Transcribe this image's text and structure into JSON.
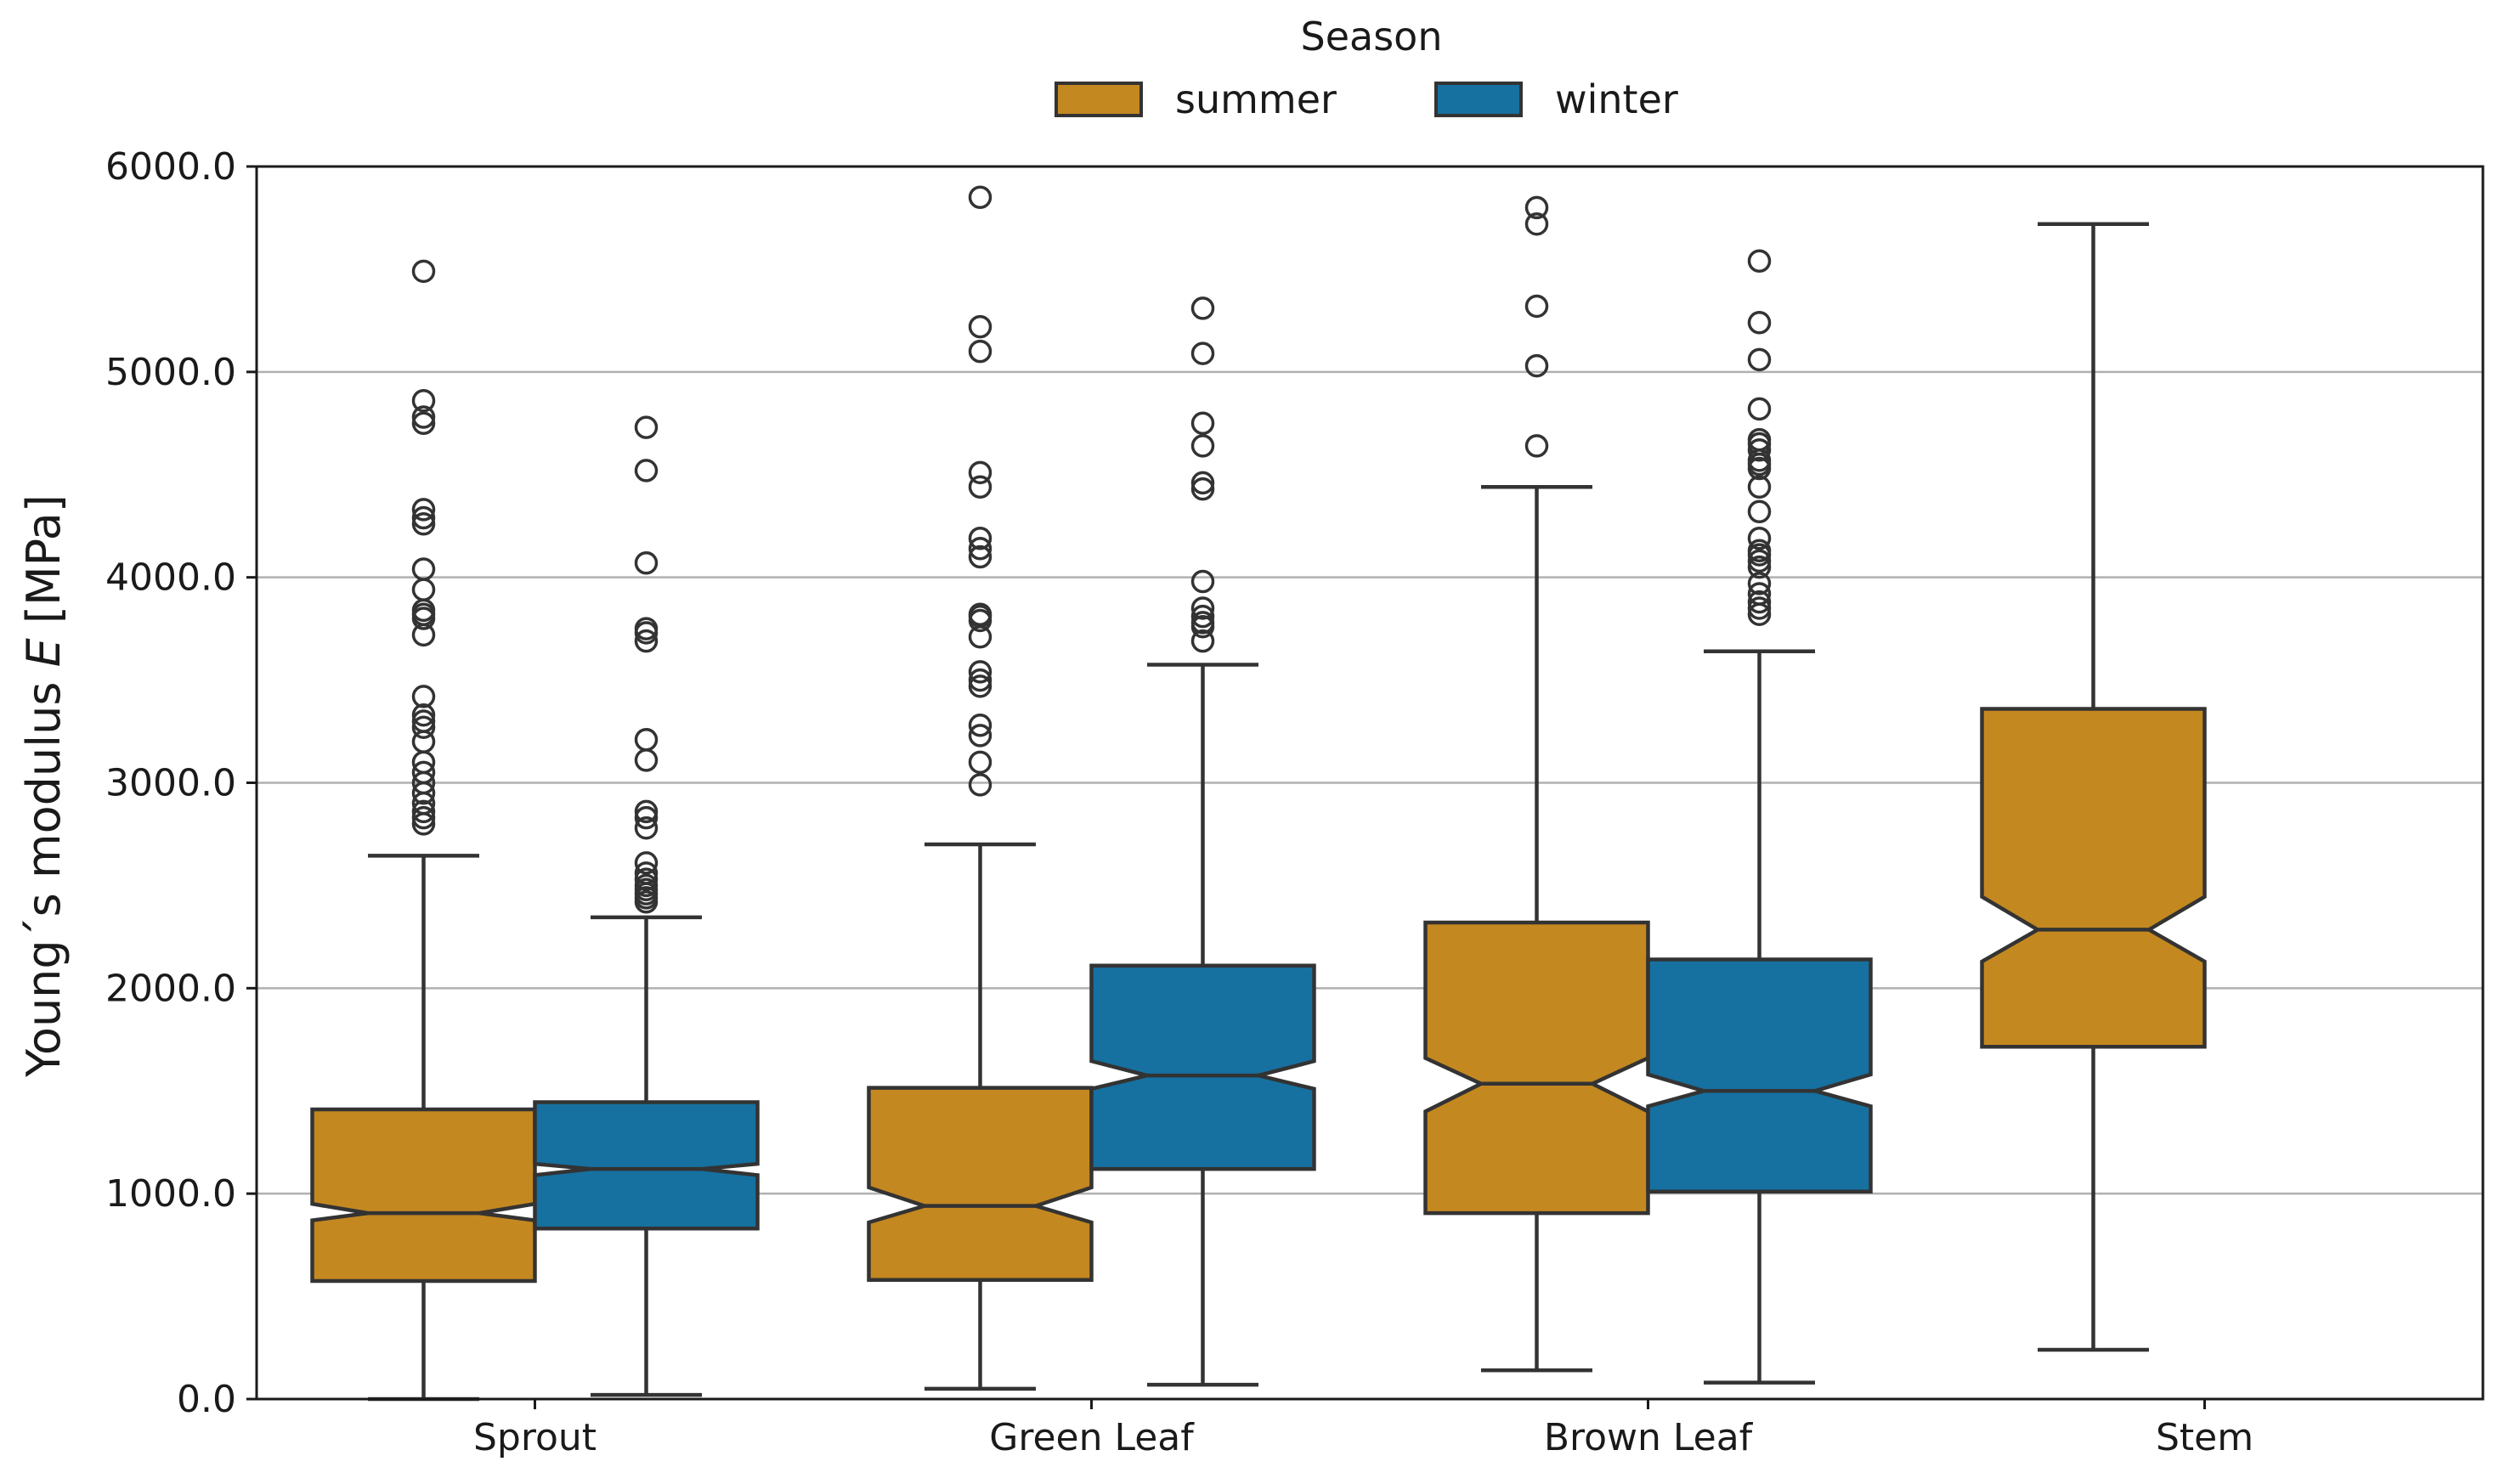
{
  "chart_data": {
    "type": "boxplot",
    "notched": true,
    "categories": [
      "Sprout",
      "Green Leaf",
      "Brown Leaf",
      "Stem"
    ],
    "ylabel_prefix": "Young´s modulus ",
    "ylabel_symbol": "E",
    "ylabel_suffix": " [MPa]",
    "ylim": [
      0,
      6000
    ],
    "yticks": [
      0,
      1000,
      2000,
      3000,
      4000,
      5000,
      6000
    ],
    "ytick_labels": [
      "0.0",
      "1000.0",
      "2000.0",
      "3000.0",
      "4000.0",
      "5000.0",
      "6000.0"
    ],
    "grid": "y-major",
    "legend": {
      "title": "Season",
      "placement": "top-center",
      "entries": [
        {
          "name": "summer",
          "color": "#c48820"
        },
        {
          "name": "winter",
          "color": "#1670a0"
        }
      ]
    },
    "series": [
      {
        "name": "summer",
        "color": "#c48820",
        "boxes": [
          {
            "category": "Sprout",
            "whisker_low": 0,
            "q1": 575,
            "notch_low": 870,
            "median": 905,
            "notch_high": 950,
            "q3": 1410,
            "whisker_high": 2645,
            "outliers": [
              2800,
              2830,
              2860,
              2900,
              2950,
              3000,
              3050,
              3100,
              3200,
              3270,
              3300,
              3330,
              3420,
              3720,
              3800,
              3820,
              3840,
              3940,
              4040,
              4260,
              4290,
              4330,
              4750,
              4780,
              4860,
              5490
            ]
          },
          {
            "category": "Green Leaf",
            "whisker_low": 50,
            "q1": 580,
            "notch_low": 860,
            "median": 940,
            "notch_high": 1030,
            "q3": 1515,
            "whisker_high": 2700,
            "outliers": [
              2990,
              3100,
              3230,
              3280,
              3470,
              3500,
              3540,
              3710,
              3790,
              3810,
              3820,
              4100,
              4140,
              4190,
              4440,
              4510,
              5100,
              5220,
              5850
            ]
          },
          {
            "category": "Brown Leaf",
            "whisker_low": 140,
            "q1": 905,
            "notch_low": 1400,
            "median": 1535,
            "notch_high": 1660,
            "q3": 2320,
            "whisker_high": 4440,
            "outliers": [
              4640,
              5030,
              5320,
              5720,
              5800
            ]
          },
          {
            "category": "Stem",
            "whisker_low": 240,
            "q1": 1715,
            "notch_low": 2130,
            "median": 2285,
            "notch_high": 2445,
            "q3": 3360,
            "whisker_high": 5720,
            "outliers": []
          }
        ]
      },
      {
        "name": "winter",
        "color": "#1670a0",
        "boxes": [
          {
            "category": "Sprout",
            "whisker_low": 20,
            "q1": 830,
            "notch_low": 1090,
            "median": 1120,
            "notch_high": 1145,
            "q3": 1445,
            "whisker_high": 2345,
            "outliers": [
              2420,
              2440,
              2460,
              2480,
              2500,
              2530,
              2560,
              2610,
              2780,
              2830,
              2860,
              3110,
              3210,
              3690,
              3730,
              3750,
              4070,
              4520,
              4730
            ]
          },
          {
            "category": "Green Leaf",
            "whisker_low": 70,
            "q1": 1120,
            "notch_low": 1510,
            "median": 1575,
            "notch_high": 1645,
            "q3": 2110,
            "whisker_high": 3575,
            "outliers": [
              3690,
              3760,
              3780,
              3810,
              3850,
              3980,
              4430,
              4460,
              4640,
              4750,
              5090,
              5310
            ]
          },
          {
            "category": "Brown Leaf",
            "whisker_low": 80,
            "q1": 1010,
            "notch_low": 1425,
            "median": 1500,
            "notch_high": 1580,
            "q3": 2140,
            "whisker_high": 3640,
            "outliers": [
              3820,
              3850,
              3880,
              3920,
              3970,
              4050,
              4080,
              4110,
              4130,
              4190,
              4320,
              4440,
              4530,
              4550,
              4570,
              4620,
              4650,
              4670,
              4820,
              5060,
              5240,
              5540
            ]
          }
        ]
      }
    ]
  }
}
